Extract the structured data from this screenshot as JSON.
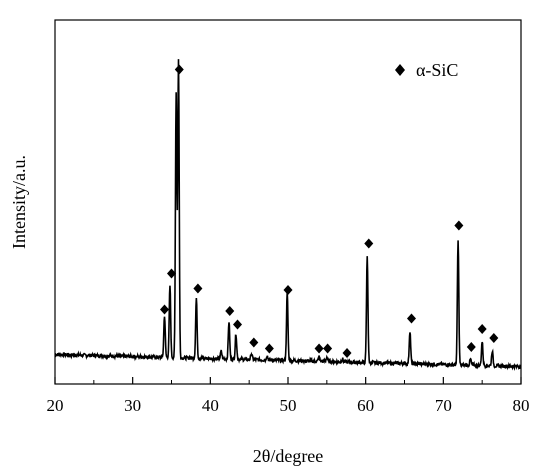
{
  "chart_data": {
    "type": "line",
    "xlabel": "2θ/degree",
    "ylabel": "Intensity/a.u.",
    "xlim": [
      20,
      80
    ],
    "xticks": [
      "20",
      "30",
      "40",
      "50",
      "60",
      "70",
      "80"
    ],
    "yticks_shown": false,
    "grid": false,
    "legend": {
      "placement": "top-right",
      "entries": [
        {
          "marker": "diamond",
          "label": "α-SiC"
        }
      ]
    },
    "baseline": {
      "start": 0.045,
      "end": 0.005
    },
    "series": [
      {
        "peaks": [
          {
            "x": 34.1,
            "y": 0.14
          },
          {
            "x": 34.8,
            "y": 0.24
          },
          {
            "x": 35.6,
            "y": 0.88
          },
          {
            "x": 35.9,
            "y": 0.99
          },
          {
            "x": 38.2,
            "y": 0.2
          },
          {
            "x": 41.4,
            "y": 0.025
          },
          {
            "x": 42.4,
            "y": 0.125
          },
          {
            "x": 43.3,
            "y": 0.085
          },
          {
            "x": 45.3,
            "y": 0.02
          },
          {
            "x": 47.3,
            "y": 0.015
          },
          {
            "x": 49.9,
            "y": 0.225
          },
          {
            "x": 54.0,
            "y": 0.015
          },
          {
            "x": 55.0,
            "y": 0.015
          },
          {
            "x": 57.0,
            "y": 0.01
          },
          {
            "x": 60.2,
            "y": 0.355
          },
          {
            "x": 65.7,
            "y": 0.11
          },
          {
            "x": 71.9,
            "y": 0.415
          },
          {
            "x": 73.5,
            "y": 0.02
          },
          {
            "x": 75.0,
            "y": 0.08
          },
          {
            "x": 76.3,
            "y": 0.05
          }
        ]
      }
    ],
    "markers": [
      {
        "x": 34.1,
        "y": 0.195
      },
      {
        "x": 35.0,
        "y": 0.315
      },
      {
        "x": 36.0,
        "y": 0.995
      },
      {
        "x": 38.4,
        "y": 0.265
      },
      {
        "x": 42.5,
        "y": 0.19
      },
      {
        "x": 43.5,
        "y": 0.145
      },
      {
        "x": 45.6,
        "y": 0.085
      },
      {
        "x": 47.6,
        "y": 0.065
      },
      {
        "x": 50.0,
        "y": 0.26
      },
      {
        "x": 54.0,
        "y": 0.065
      },
      {
        "x": 55.1,
        "y": 0.065
      },
      {
        "x": 57.6,
        "y": 0.05
      },
      {
        "x": 60.4,
        "y": 0.415
      },
      {
        "x": 65.9,
        "y": 0.165
      },
      {
        "x": 72.0,
        "y": 0.475
      },
      {
        "x": 73.6,
        "y": 0.07
      },
      {
        "x": 75.0,
        "y": 0.13
      },
      {
        "x": 76.5,
        "y": 0.1
      }
    ],
    "colors": {
      "line": "#000000",
      "marker": "#000000",
      "axis": "#000000"
    }
  }
}
